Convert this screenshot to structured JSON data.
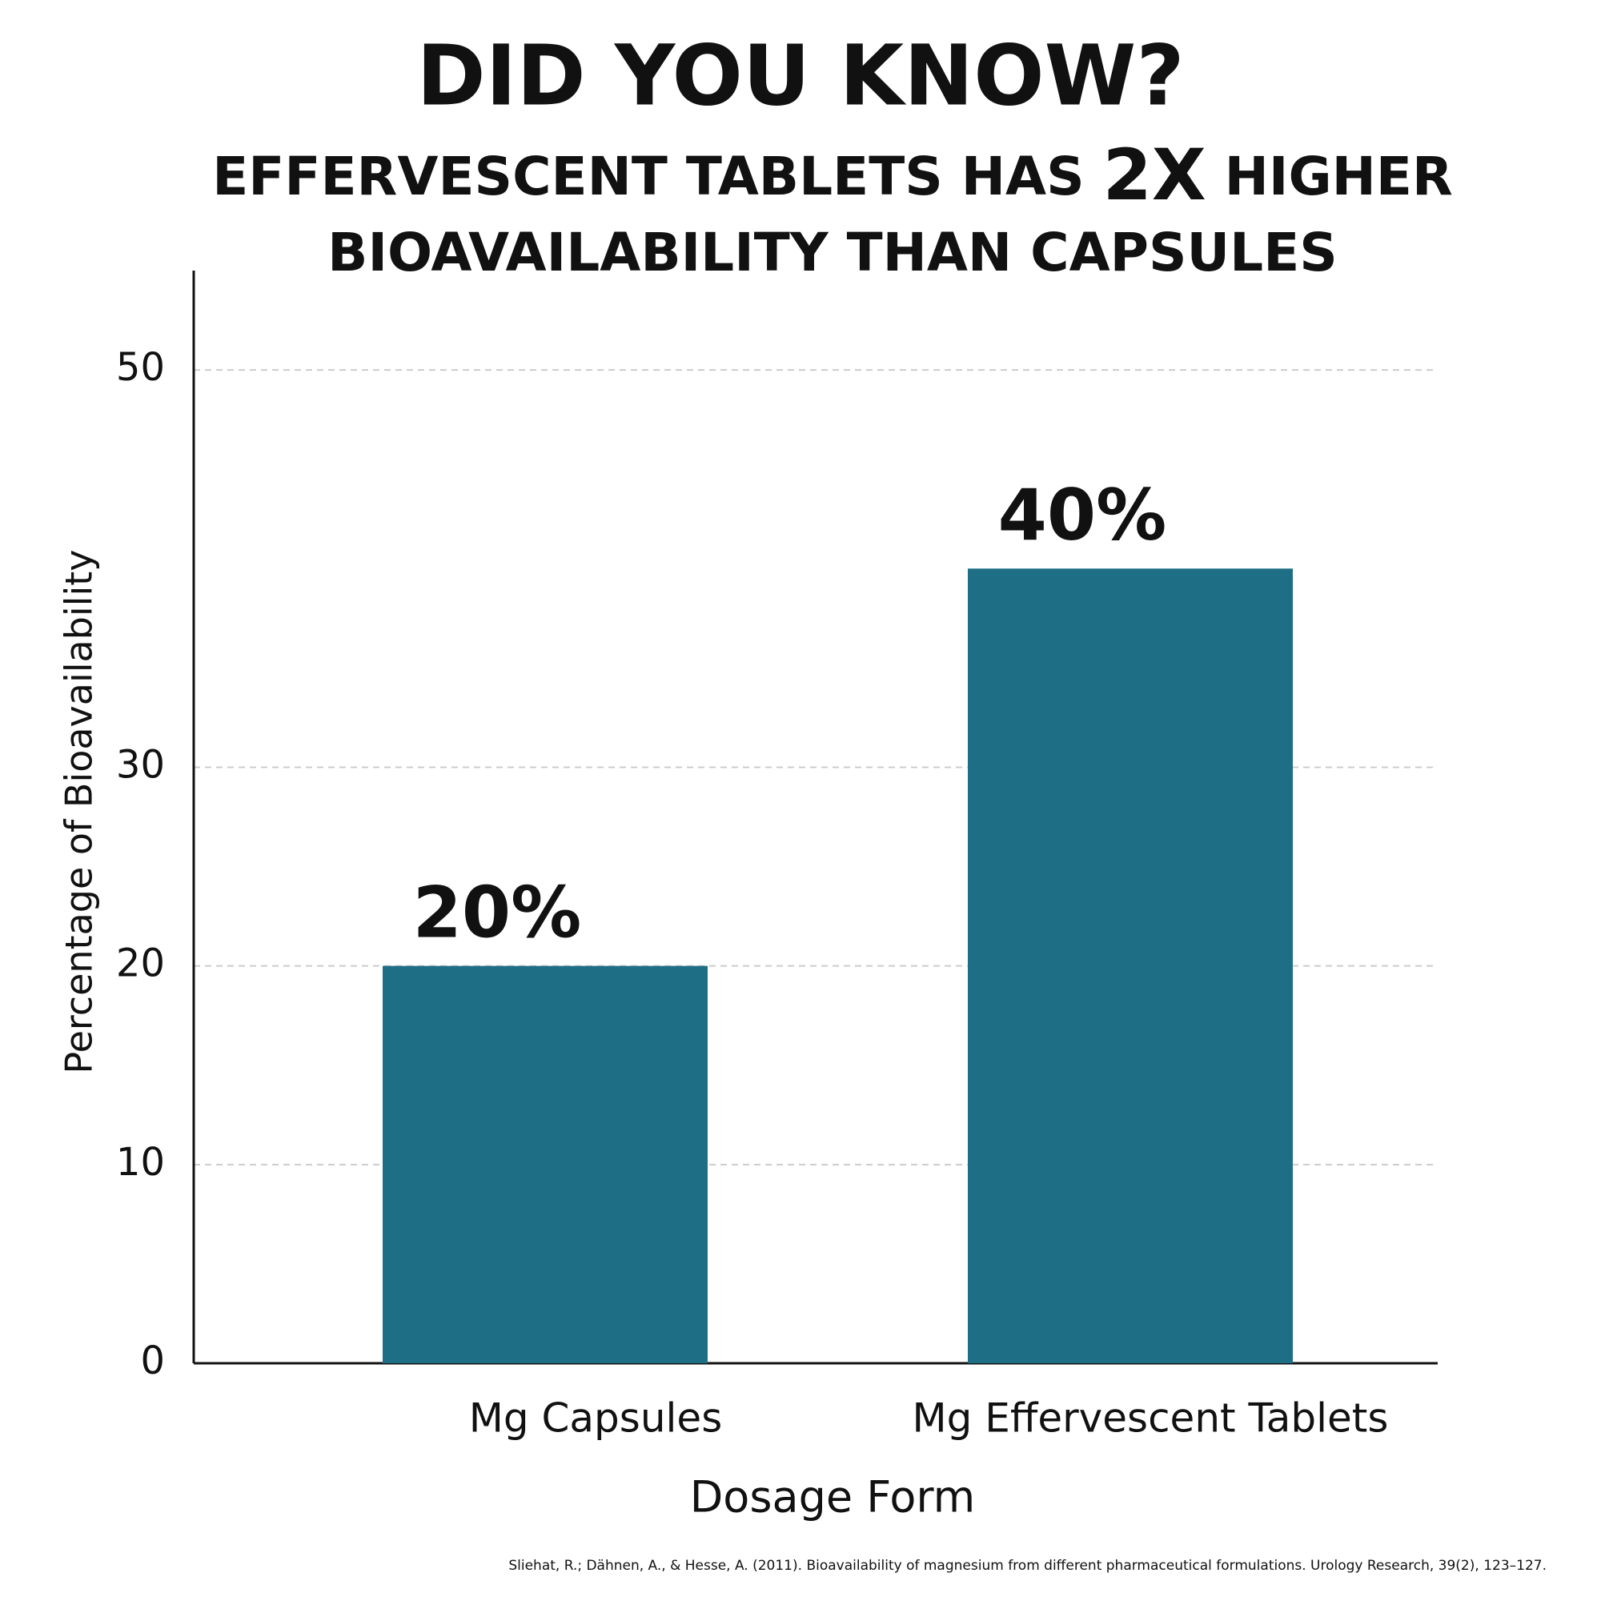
{
  "chart_data": {
    "type": "bar",
    "title": "DID YOU KNOW?",
    "subtitle": [
      "EFFERVESCENT TABLETS HAS",
      "2X",
      "HIGHER",
      "BIOAVAILABILITY THAN CAPSULES"
    ],
    "categories": [
      "Mg Capsules",
      "Mg Effervescent Tablets"
    ],
    "values": [
      20,
      40
    ],
    "value_labels": [
      "20%",
      "40%"
    ],
    "color": "#1e6f86",
    "xlabel": "Dosage Form",
    "ylabel": "Percentage of Bioavailability",
    "ylim": [
      0,
      55
    ],
    "yticks": [
      0,
      10,
      20,
      30,
      50
    ],
    "grid": true,
    "source": "Sliehat, R.; Dähnen, A., & Hesse, A. (2011). Bioavailability of magnesium from different pharmaceutical formulations. Urology Research, 39(2), 123–127."
  }
}
